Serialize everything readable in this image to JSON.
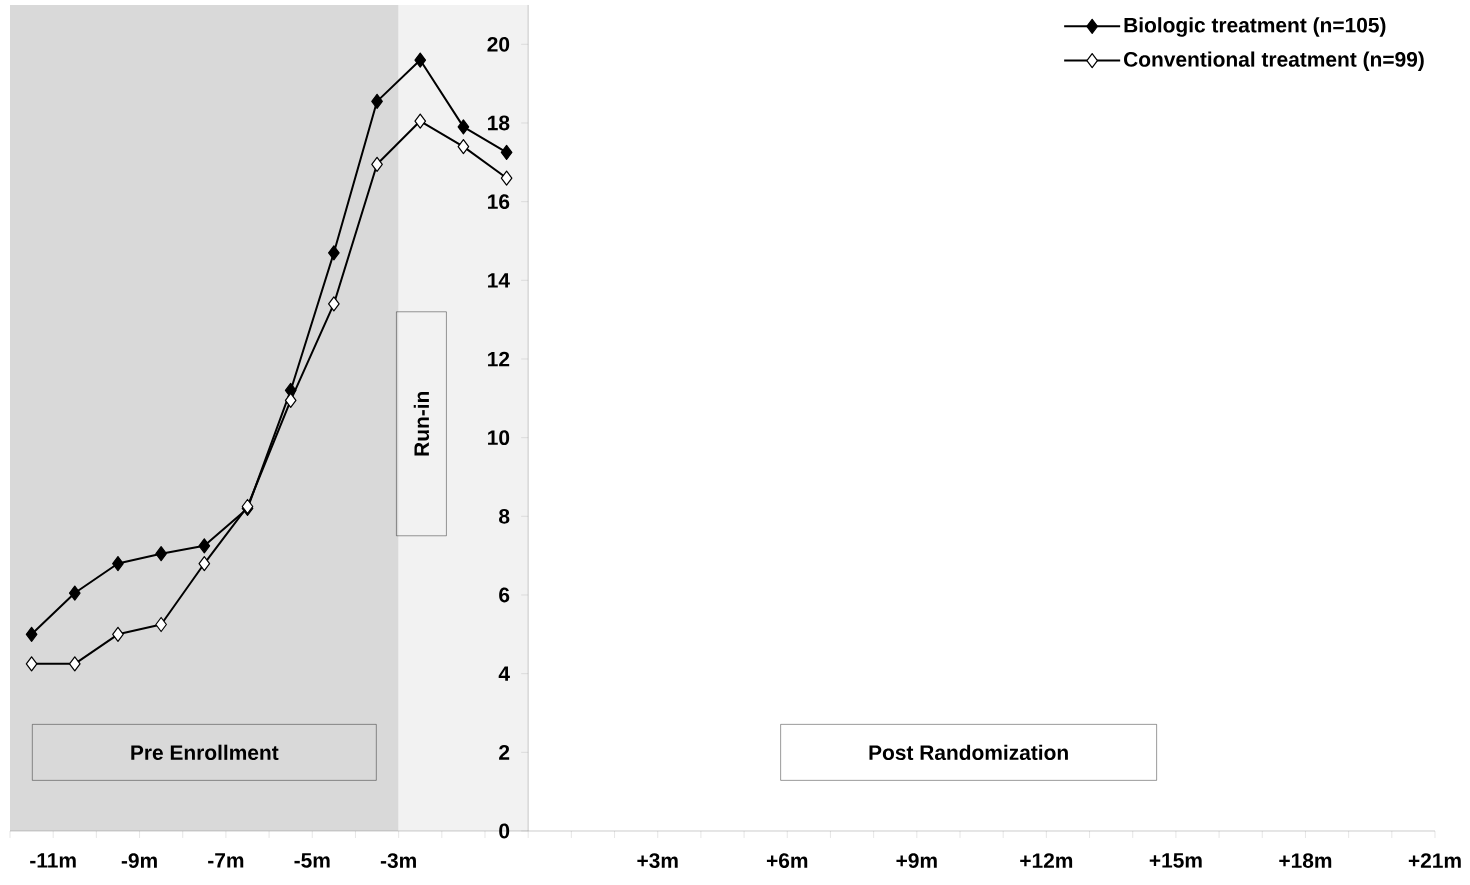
{
  "chart_data": {
    "type": "line",
    "x": [
      -11.5,
      -10.5,
      -9.5,
      -8.5,
      -7.5,
      -6.5,
      -5.5,
      -4.5,
      -3.5,
      -2.5,
      -1.5,
      -0.5
    ],
    "series": [
      {
        "name": "Biologic treatment (n=105)",
        "color": "#000000",
        "values": [
          5.0,
          6.05,
          6.8,
          7.05,
          7.25,
          8.2,
          11.2,
          14.7,
          18.55,
          19.6,
          17.9,
          17.25
        ]
      },
      {
        "name": "Conventional treatment (n=99)",
        "color": "#000000",
        "values": [
          4.25,
          4.25,
          5.0,
          5.25,
          6.8,
          8.25,
          10.95,
          13.4,
          16.95,
          18.05,
          17.4,
          16.6
        ]
      }
    ],
    "xlim": [
      -12,
      21
    ],
    "xticks": [
      {
        "value": -12,
        "label": null
      },
      {
        "value": -11,
        "label": "-11m"
      },
      {
        "value": -10,
        "label": null
      },
      {
        "value": -9,
        "label": "-9m"
      },
      {
        "value": -8,
        "label": null
      },
      {
        "value": -7,
        "label": "-7m"
      },
      {
        "value": -6,
        "label": null
      },
      {
        "value": -5,
        "label": "-5m"
      },
      {
        "value": -4,
        "label": null
      },
      {
        "value": -3,
        "label": "-3m"
      },
      {
        "value": -2,
        "label": null
      },
      {
        "value": -1,
        "label": null
      },
      {
        "value": 0,
        "label": null
      },
      {
        "value": 1,
        "label": null
      },
      {
        "value": 2,
        "label": null
      },
      {
        "value": 3,
        "label": "+3m"
      },
      {
        "value": 4,
        "label": null
      },
      {
        "value": 5,
        "label": null
      },
      {
        "value": 6,
        "label": "+6m"
      },
      {
        "value": 7,
        "label": null
      },
      {
        "value": 8,
        "label": null
      },
      {
        "value": 9,
        "label": "+9m"
      },
      {
        "value": 10,
        "label": null
      },
      {
        "value": 11,
        "label": null
      },
      {
        "value": 12,
        "label": "+12m"
      },
      {
        "value": 13,
        "label": null
      },
      {
        "value": 14,
        "label": null
      },
      {
        "value": 15,
        "label": "+15m"
      },
      {
        "value": 16,
        "label": null
      },
      {
        "value": 17,
        "label": null
      },
      {
        "value": 18,
        "label": "+18m"
      },
      {
        "value": 19,
        "label": null
      },
      {
        "value": 20,
        "label": null
      },
      {
        "value": 21,
        "label": "+21m"
      }
    ],
    "ylim": [
      0,
      21
    ],
    "yticks": [
      0,
      2,
      4,
      6,
      8,
      10,
      12,
      14,
      16,
      18,
      20
    ],
    "bands": [
      {
        "axis": "x",
        "from": -12,
        "to": -3,
        "label": "Pre Enrollment",
        "color": "#d9d9d9"
      },
      {
        "axis": "x",
        "from": -3,
        "to": 0,
        "label": "Run-in",
        "color": "#f2f2f2"
      }
    ],
    "annotations": [
      "Post Randomization"
    ],
    "marker": "diamond",
    "line_style": "solid",
    "grid": false,
    "legend": "top right"
  }
}
